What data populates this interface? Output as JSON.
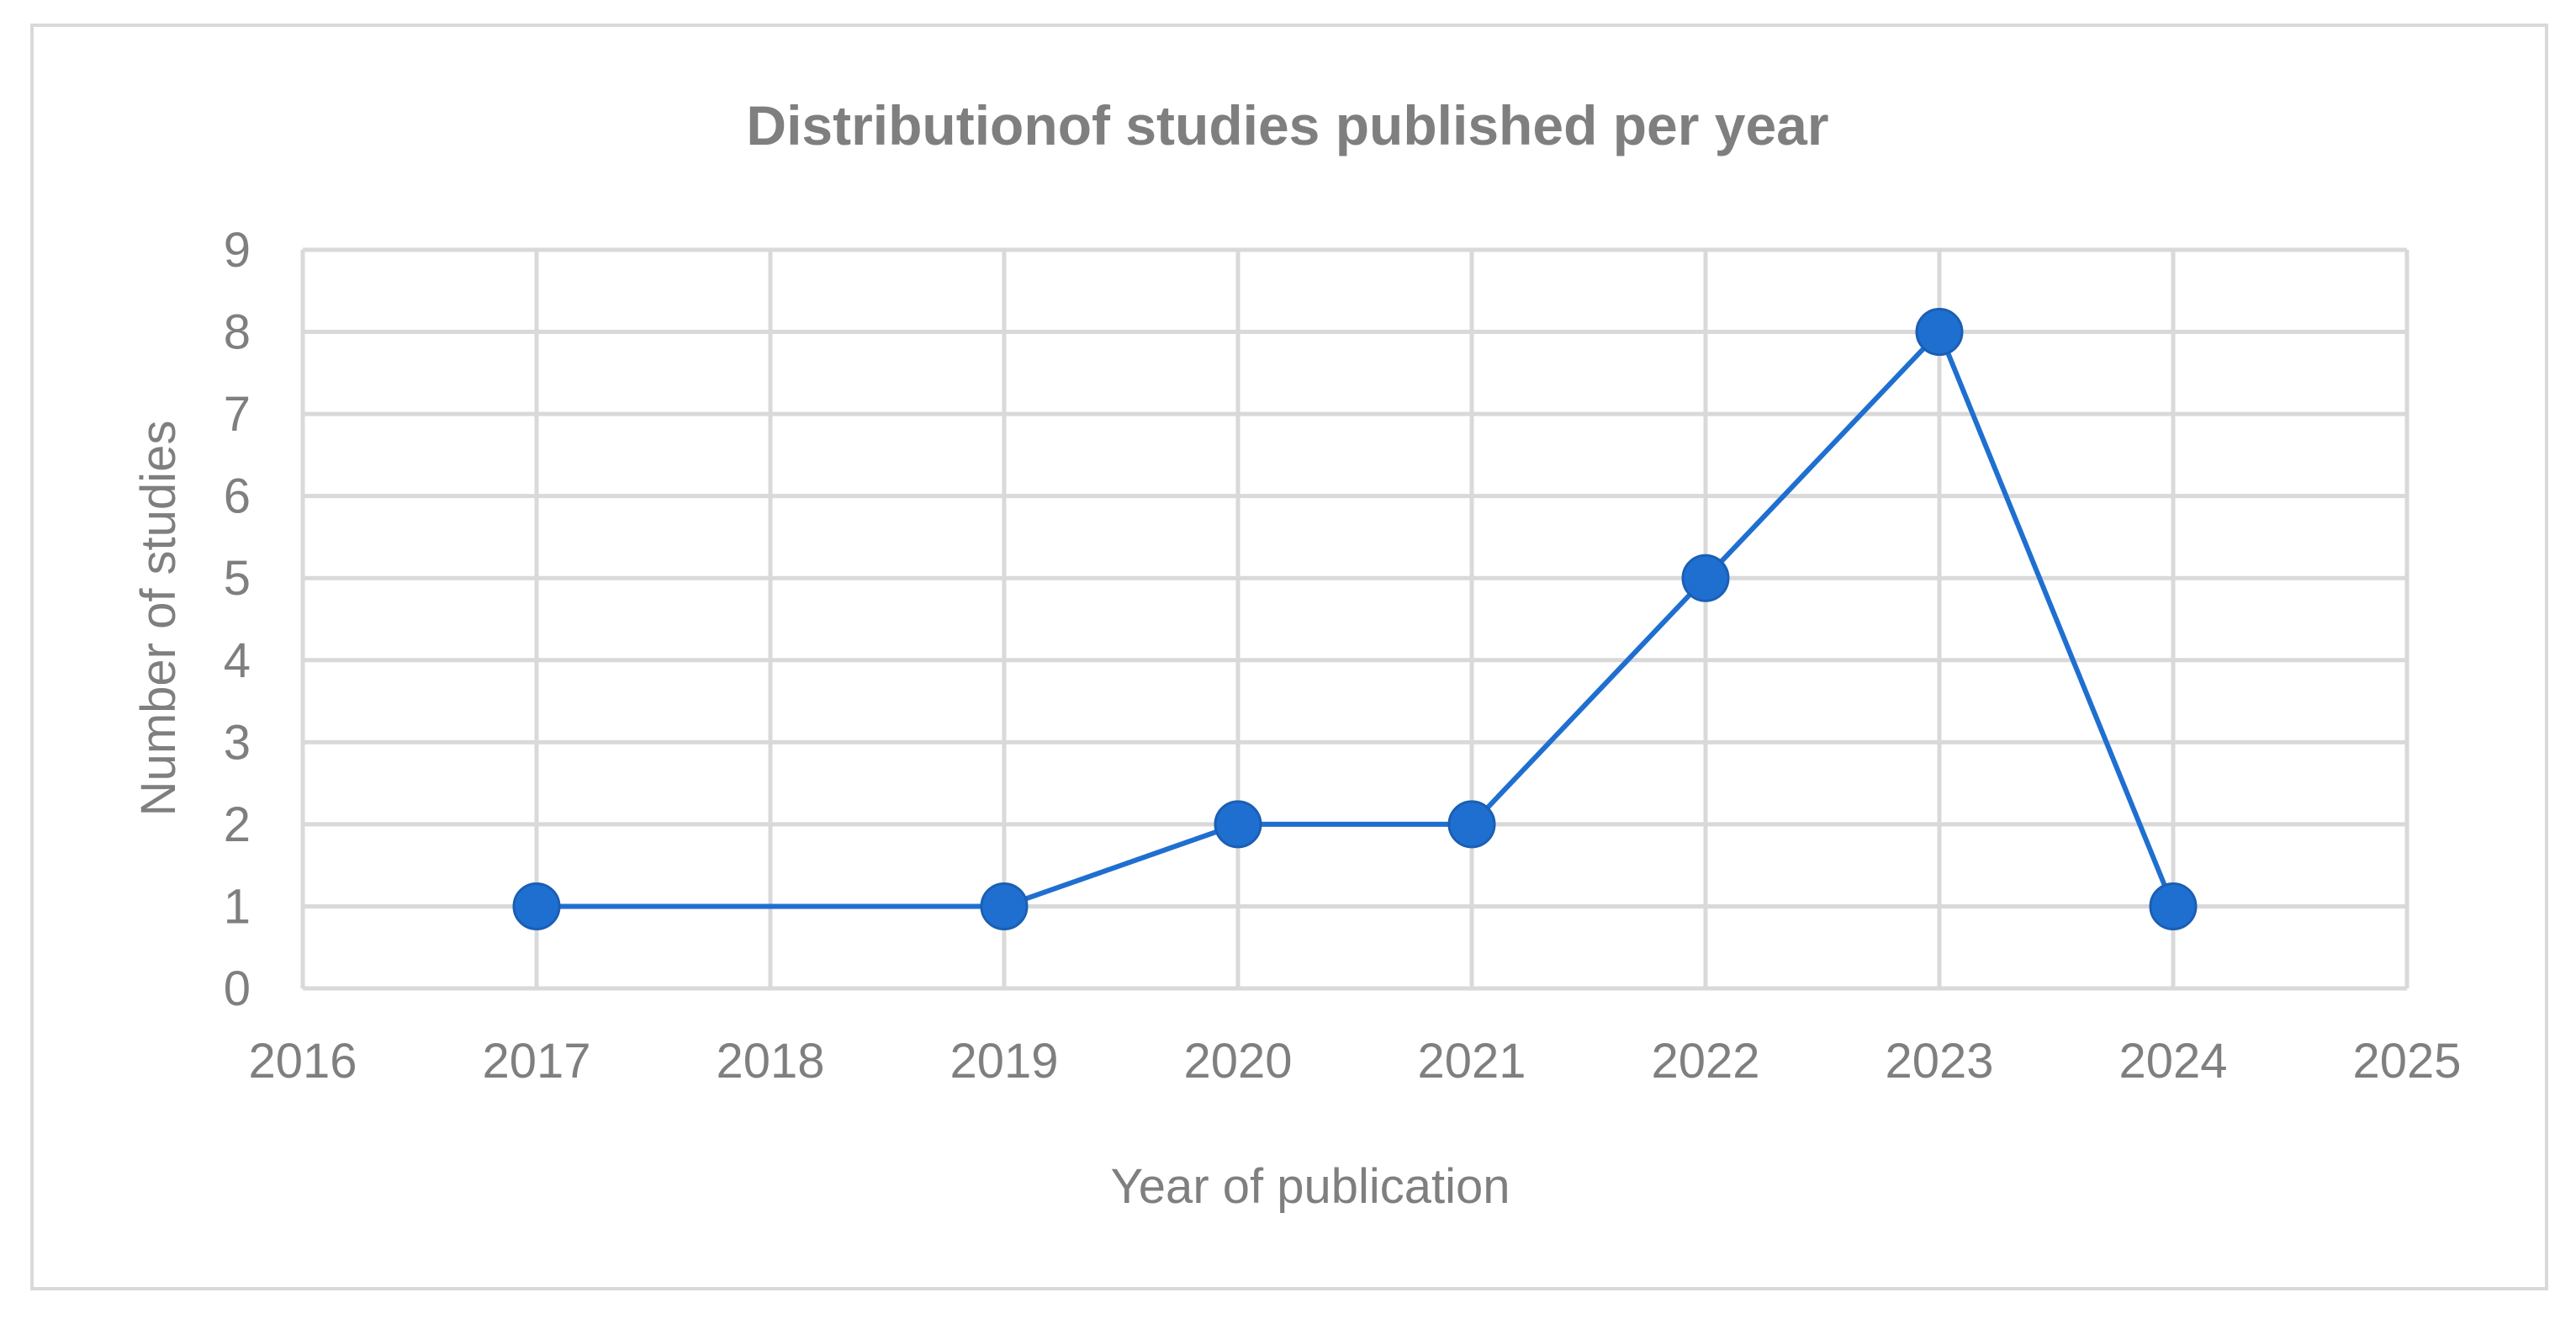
{
  "chart_data": {
    "type": "scatter",
    "title": "Distributionof studies published per year",
    "xlabel": "Year of publication",
    "ylabel": "Number of studies",
    "xlim": [
      2016,
      2025
    ],
    "ylim": [
      0,
      9
    ],
    "xticks": [
      "2016",
      "2017",
      "2018",
      "2019",
      "2020",
      "2021",
      "2022",
      "2023",
      "2024",
      "2025"
    ],
    "yticks": [
      "0",
      "1",
      "2",
      "3",
      "4",
      "5",
      "6",
      "7",
      "8",
      "9"
    ],
    "grid": true,
    "legend": "none",
    "series": [
      {
        "x": [
          2017,
          2019,
          2020,
          2021,
          2022,
          2023,
          2024
        ],
        "y": [
          1,
          1,
          2,
          2,
          5,
          8,
          1
        ],
        "line": true,
        "marker": "circle",
        "color": "#1f6fd1"
      }
    ]
  }
}
